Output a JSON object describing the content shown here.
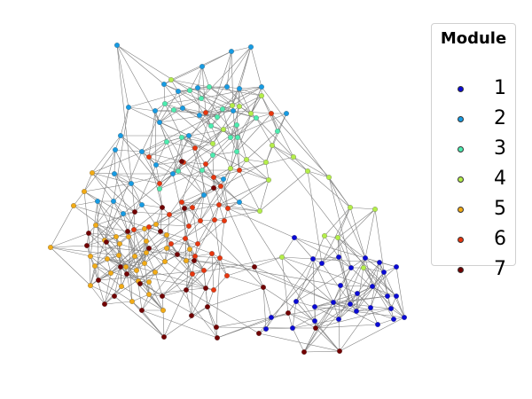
{
  "legend": {
    "title": "Module",
    "entries": [
      {
        "label": "1",
        "color": "#0a0ad6"
      },
      {
        "label": "2",
        "color": "#169be3"
      },
      {
        "label": "3",
        "color": "#4dedb0"
      },
      {
        "label": "4",
        "color": "#b4ee4a"
      },
      {
        "label": "5",
        "color": "#f2ab16"
      },
      {
        "label": "6",
        "color": "#e8360e"
      },
      {
        "label": "7",
        "color": "#720000"
      }
    ]
  },
  "diagram": {
    "type": "network",
    "edge_color": "#808080",
    "node_count": 200,
    "node_modules": [
      1,
      1,
      1,
      1,
      1,
      1,
      1,
      1,
      1,
      1,
      1,
      1,
      1,
      1,
      1,
      1,
      1,
      1,
      1,
      1,
      1,
      1,
      1,
      1,
      1,
      1,
      1,
      1,
      1,
      2,
      2,
      2,
      2,
      2,
      2,
      2,
      2,
      2,
      2,
      2,
      2,
      2,
      2,
      2,
      2,
      2,
      2,
      2,
      2,
      2,
      2,
      2,
      2,
      2,
      2,
      2,
      2,
      2,
      2,
      2,
      2,
      3,
      3,
      3,
      3,
      3,
      3,
      3,
      3,
      3,
      3,
      3,
      3,
      3,
      3,
      3,
      3,
      3,
      3,
      3,
      3,
      4,
      4,
      4,
      4,
      4,
      4,
      4,
      4,
      4,
      4,
      4,
      4,
      4,
      4,
      4,
      4,
      4,
      4,
      4,
      4,
      4,
      4,
      5,
      5,
      5,
      5,
      5,
      5,
      5,
      5,
      5,
      5,
      5,
      5,
      5,
      5,
      5,
      5,
      5,
      5,
      5,
      5,
      5,
      5,
      5,
      5,
      5,
      5,
      5,
      5,
      5,
      5,
      5,
      5,
      5,
      5,
      5,
      6,
      6,
      6,
      6,
      6,
      6,
      6,
      6,
      6,
      6,
      6,
      6,
      6,
      6,
      6,
      6,
      6,
      6,
      6,
      6,
      6,
      6,
      6,
      6,
      6,
      6,
      6,
      6,
      6,
      6,
      6,
      7,
      7,
      7,
      7,
      7,
      7,
      7,
      7,
      7,
      7,
      7,
      7,
      7,
      7,
      7,
      7,
      7,
      7,
      7,
      7,
      7,
      7,
      7,
      7,
      7,
      7,
      7,
      7,
      7,
      7,
      7,
      7,
      7,
      7,
      7
    ]
  }
}
